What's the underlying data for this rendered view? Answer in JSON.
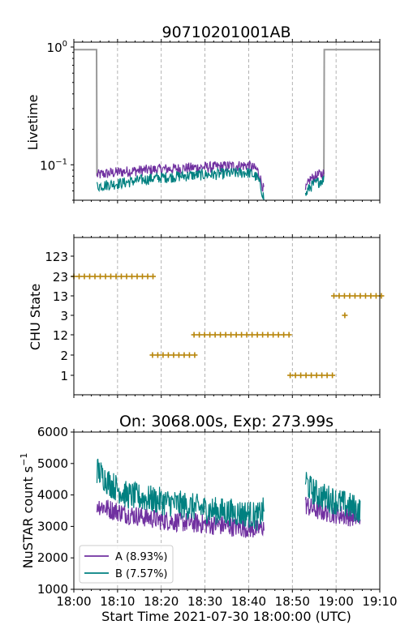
{
  "chart_data": [
    {
      "type": "line",
      "title": "90710201001AB",
      "ylabel": "Livetime",
      "yscale": "log",
      "ylim": [
        0.05,
        1.1
      ],
      "xlim": [
        0,
        70
      ],
      "x_unit": "minutes after 18:00",
      "ytick_labels": [
        {
          "v": 1,
          "label": "10",
          "sup": "0"
        },
        {
          "v": 0.1,
          "label": "10",
          "sup": "−1"
        }
      ],
      "grid_x": true,
      "series": [
        {
          "id": "gray",
          "color": "#999999",
          "x": [
            0,
            3,
            3.1,
            17
          ],
          "segments": [
            {
              "x": [
                0,
                3,
                5.2,
                5.3
              ],
              "y": [
                0.95,
                0.95,
                0.95,
                0.08
              ]
            },
            {
              "x": [
                57.2,
                57.3,
                60,
                70
              ],
              "y": [
                0.08,
                0.95,
                0.95,
                0.95
              ]
            }
          ]
        },
        {
          "id": "A",
          "color": "#7030a0",
          "segments": [
            {
              "x": [
                5.3,
                8,
                12,
                16,
                20,
                24,
                28,
                32,
                36,
                40,
                42,
                43.5
              ],
              "y": [
                0.082,
                0.085,
                0.088,
                0.09,
                0.092,
                0.093,
                0.095,
                0.096,
                0.098,
                0.099,
                0.09,
                0.06
              ]
            },
            {
              "x": [
                53,
                54,
                56,
                57.2
              ],
              "y": [
                0.06,
                0.075,
                0.082,
                0.085
              ]
            }
          ]
        },
        {
          "id": "B",
          "color": "#008080",
          "segments": [
            {
              "x": [
                5.3,
                8,
                12,
                16,
                20,
                24,
                28,
                32,
                36,
                40,
                42,
                43.5
              ],
              "y": [
                0.066,
                0.068,
                0.071,
                0.075,
                0.078,
                0.08,
                0.082,
                0.083,
                0.085,
                0.086,
                0.078,
                0.052
              ]
            },
            {
              "x": [
                53,
                54,
                56,
                57.2
              ],
              "y": [
                0.055,
                0.065,
                0.072,
                0.075
              ]
            }
          ]
        }
      ]
    },
    {
      "type": "scatter",
      "ylabel": "CHU State",
      "categories": [
        "1",
        "2",
        "12",
        "3",
        "13",
        "23",
        "123"
      ],
      "xlim": [
        0,
        70
      ],
      "x_unit": "minutes after 18:00",
      "marker": "+",
      "color": "#b8860b",
      "grid_x": true,
      "segments": [
        {
          "state": "23",
          "x_start": 0,
          "x_end": 18
        },
        {
          "state": "2",
          "x_start": 18,
          "x_end": 27.5
        },
        {
          "state": "12",
          "x_start": 27.5,
          "x_end": 49
        },
        {
          "state": "1",
          "x_start": 49.5,
          "x_end": 59
        },
        {
          "state": "13",
          "x_start": 59.5,
          "x_end": 70
        },
        {
          "state": "3",
          "x_start": 62,
          "x_end": 62
        }
      ]
    },
    {
      "type": "line",
      "title": "On: 3068.00s, Exp: 273.99s",
      "ylabel": "NuSTAR count s",
      "ylabel_sup": "−1",
      "xlabel": "Start Time 2021-07-30 18:00:00 (UTC)",
      "ylim": [
        1000,
        6000
      ],
      "xlim": [
        0,
        70
      ],
      "x_unit": "minutes after 18:00",
      "yticks": [
        1000,
        2000,
        3000,
        4000,
        5000,
        6000
      ],
      "xtick_labels": [
        "18:00",
        "18:10",
        "18:20",
        "18:30",
        "18:40",
        "18:50",
        "19:00",
        "19:10"
      ],
      "grid_x": true,
      "legend_position": "bottom-left",
      "series": [
        {
          "name": "A (8.93%)",
          "color": "#7030a0",
          "segments": [
            {
              "x": [
                5.3,
                8,
                12,
                16,
                20,
                24,
                28,
                32,
                36,
                40,
                42,
                43.5
              ],
              "y": [
                3700,
                3550,
                3400,
                3300,
                3200,
                3150,
                3100,
                3050,
                3000,
                2950,
                2900,
                3000
              ]
            },
            {
              "x": [
                53,
                54,
                56,
                58,
                60,
                62,
                64,
                65.5
              ],
              "y": [
                3700,
                3600,
                3500,
                3450,
                3400,
                3350,
                3300,
                3250
              ]
            }
          ]
        },
        {
          "name": "B (7.57%)",
          "color": "#008080",
          "segments": [
            {
              "x": [
                5.3,
                8,
                12,
                16,
                20,
                24,
                28,
                32,
                36,
                40,
                42,
                43.5
              ],
              "y": [
                4800,
                4400,
                4000,
                3900,
                3800,
                3700,
                3600,
                3500,
                3450,
                3400,
                3300,
                3500
              ]
            },
            {
              "x": [
                53,
                54,
                56,
                58,
                60,
                62,
                64,
                65.5
              ],
              "y": [
                4500,
                4200,
                4000,
                3900,
                3800,
                3700,
                3600,
                3500
              ]
            }
          ]
        }
      ]
    }
  ]
}
